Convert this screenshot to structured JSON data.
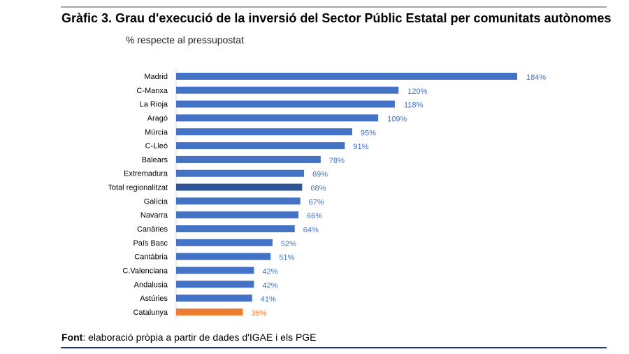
{
  "chart_data": {
    "type": "bar",
    "orientation": "horizontal",
    "title": "Gràfic 3. Grau d'execució de la inversió del Sector Públic Estatal per comunitats autònomes",
    "subtitle": "% respecte al pressupostat",
    "categories": [
      "Madrid",
      "C-Manxa",
      "La Rioja",
      "Aragó",
      "Múrcia",
      "C-Lleó",
      "Balears",
      "Extremadura",
      "Total regionalitzat",
      "Galícia",
      "Navarra",
      "Canàries",
      "País Basc",
      "Cantàbria",
      "C.Valenciana",
      "Andalusia",
      "Astúries",
      "Catalunya"
    ],
    "values": [
      184,
      120,
      118,
      109,
      95,
      91,
      78,
      69,
      68,
      67,
      66,
      64,
      52,
      51,
      42,
      42,
      41,
      36
    ],
    "data_labels": [
      "184%",
      "120%",
      "118%",
      "109%",
      "95%",
      "91%",
      "78%",
      "69%",
      "68%",
      "67%",
      "66%",
      "64%",
      "52%",
      "51%",
      "42%",
      "42%",
      "41%",
      "36%"
    ],
    "unit": "%",
    "xlim": [
      0,
      184
    ],
    "grid": false,
    "legend": "none",
    "colors": {
      "default": "#4472c4",
      "total": "#2f5597",
      "highlight": "#ed7d31"
    },
    "highlight": {
      "Total regionalitzat": "total",
      "Catalunya": "highlight"
    }
  },
  "footer": {
    "label": "Font",
    "text": ": elaboració pròpia a partir de dades d'IGAE i els PGE"
  }
}
